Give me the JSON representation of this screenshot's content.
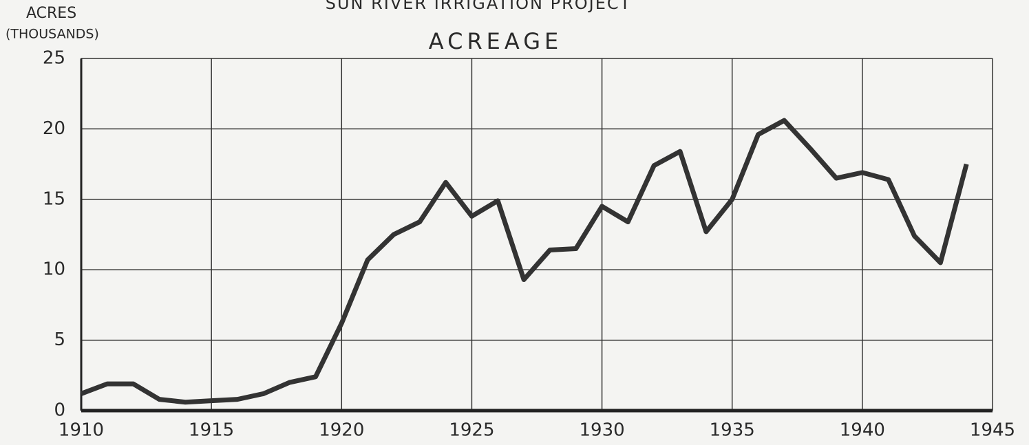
{
  "chart_data": {
    "type": "line",
    "title": "SUN RIVER IRRIGATION PROJECT",
    "subtitle": "ACREAGE",
    "y_label": "ACRES",
    "y_label_units": "(THOUSANDS)",
    "x": [
      1910,
      1911,
      1912,
      1913,
      1914,
      1915,
      1916,
      1917,
      1918,
      1919,
      1920,
      1921,
      1922,
      1923,
      1924,
      1925,
      1926,
      1927,
      1928,
      1929,
      1930,
      1931,
      1932,
      1933,
      1934,
      1935,
      1936,
      1937,
      1938,
      1939,
      1940,
      1941,
      1942,
      1943,
      1944
    ],
    "series": [
      {
        "name": "Acreage",
        "color": "#333333",
        "values": [
          1.2,
          1.9,
          1.9,
          0.8,
          0.6,
          0.7,
          0.8,
          1.2,
          2.0,
          2.4,
          6.2,
          10.7,
          12.5,
          13.4,
          16.2,
          13.8,
          14.9,
          9.3,
          11.4,
          11.5,
          14.5,
          13.4,
          17.4,
          18.4,
          12.7,
          15.0,
          19.6,
          20.6,
          18.6,
          16.5,
          16.9,
          16.4,
          12.4,
          10.5,
          17.5
        ]
      }
    ],
    "xlim": [
      1910,
      1945
    ],
    "xticks": [
      1910,
      1915,
      1920,
      1925,
      1930,
      1935,
      1940,
      1945
    ],
    "ylim": [
      0,
      25
    ],
    "yticks": [
      0,
      5,
      10,
      15,
      20,
      25
    ],
    "grid": true
  }
}
